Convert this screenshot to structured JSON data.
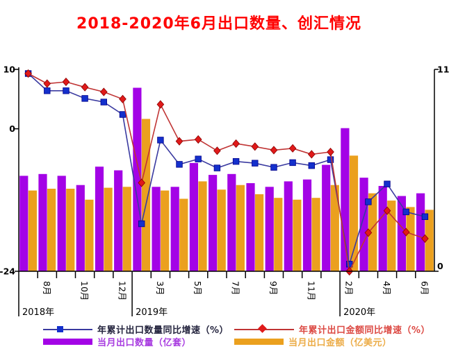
{
  "title": {
    "text": "2018-2020年6月出口数量、创汇情况",
    "color": "#FF0000"
  },
  "chart_data": {
    "type": "bar+line combo",
    "categories": [
      "7月",
      "8月",
      "9月",
      "10月",
      "11月",
      "12月",
      "2月",
      "3月",
      "4月",
      "5月",
      "6月",
      "7月",
      "8月",
      "9月",
      "10月",
      "11月",
      "12月",
      "2月",
      "3月",
      "4月",
      "5月",
      "6月"
    ],
    "year_sections": [
      {
        "label": "2018年",
        "start_index": 0
      },
      {
        "label": "2019年",
        "start_index": 6
      },
      {
        "label": "2020年",
        "start_index": 17
      }
    ],
    "x_tick_labels": [
      {
        "i": 1,
        "t": "8月"
      },
      {
        "i": 3,
        "t": "10月"
      },
      {
        "i": 5,
        "t": "12月"
      },
      {
        "i": 7,
        "t": "3月"
      },
      {
        "i": 9,
        "t": "5月"
      },
      {
        "i": 11,
        "t": "7月"
      },
      {
        "i": 13,
        "t": "9月"
      },
      {
        "i": 15,
        "t": "11月"
      },
      {
        "i": 17,
        "t": "2月"
      },
      {
        "i": 19,
        "t": "4月"
      },
      {
        "i": 21,
        "t": "6月"
      }
    ],
    "left_axis": {
      "max": 10,
      "min": -24,
      "ticks": [
        {
          "label": "10",
          "value": 10
        },
        {
          "label": "0",
          "value": 0
        },
        {
          "label": "-24",
          "value": -24
        }
      ]
    },
    "right_axis": {
      "max": 11,
      "min": 0,
      "ticks": [
        {
          "label": "11",
          "value": 11
        },
        {
          "label": "0",
          "value": 0
        }
      ]
    },
    "series": [
      {
        "name": "年累计出口数量同比增速（%）",
        "type": "line",
        "axis": "left",
        "line_color": "#3A3AA0",
        "marker": "square",
        "marker_color": "#1430CC",
        "label_color": "#24243E",
        "values": [
          9.3,
          6.4,
          6.4,
          5.1,
          4.5,
          2.4,
          -16.0,
          -1.9,
          -6.0,
          -5.1,
          -6.6,
          -5.5,
          -5.8,
          -6.5,
          -5.7,
          -6.2,
          -5.2,
          -22.8,
          -12.3,
          -9.3,
          -14.0,
          -14.8
        ]
      },
      {
        "name": "年累计出口金额同比增速（%）",
        "type": "line",
        "axis": "left",
        "line_color": "#C03434",
        "marker": "diamond",
        "marker_color": "#E01A1A",
        "label_color": "#DC4A44",
        "values": [
          9.3,
          7.6,
          7.9,
          7.0,
          6.2,
          5.0,
          -9.1,
          4.1,
          -2.1,
          -1.8,
          -3.7,
          -2.5,
          -3.0,
          -3.6,
          -3.3,
          -4.3,
          -3.9,
          -24.0,
          -17.5,
          -13.8,
          -17.4,
          -18.5
        ]
      },
      {
        "name": "当月出口数量（亿套）",
        "type": "bar",
        "axis": "right",
        "color": "#A303E6",
        "label_color": "#A83CE0",
        "values": [
          5.2,
          5.3,
          5.2,
          4.7,
          5.7,
          5.5,
          10.0,
          4.6,
          4.6,
          5.9,
          5.25,
          5.3,
          4.8,
          4.6,
          4.9,
          5.0,
          5.8,
          7.8,
          5.1,
          4.65,
          4.1,
          4.25
        ]
      },
      {
        "name": "当月出口金额（亿美元）",
        "type": "bar",
        "axis": "right",
        "color": "#EBA01E",
        "label_color": "#ECAC48",
        "values": [
          4.4,
          4.5,
          4.5,
          3.9,
          4.55,
          4.6,
          8.3,
          4.4,
          3.95,
          4.9,
          4.45,
          4.7,
          4.2,
          4.0,
          3.9,
          4.0,
          4.7,
          6.3,
          4.25,
          3.85,
          3.5,
          3.35
        ]
      }
    ],
    "grid": "off",
    "legend_position": "bottom"
  }
}
